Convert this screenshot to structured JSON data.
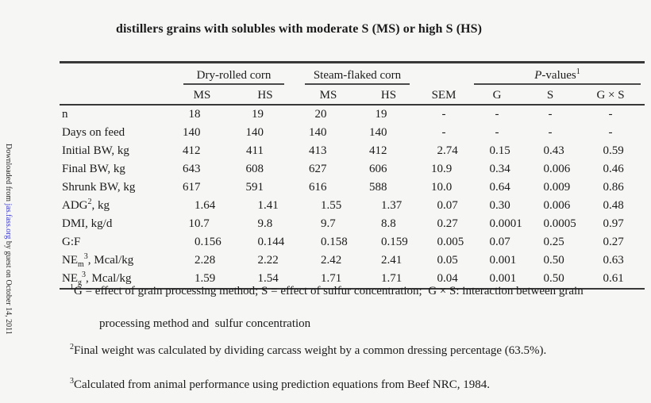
{
  "colors": {
    "background": "#f6f6f5",
    "text": "#1b1b1b",
    "rule": "#383838",
    "link": "#3a3acc"
  },
  "sidebar": {
    "pre": "Downloaded from ",
    "link": "jas.fass.org",
    "post": " by guest on October 14, 2011"
  },
  "caption": "distillers grains with solubles with moderate S (MS) or high S (HS)",
  "table": {
    "groups": [
      {
        "label": "Dry-rolled corn"
      },
      {
        "label": "Steam-flaked corn"
      },
      {
        "italic": "P",
        "rest": "-values",
        "sup": "1"
      }
    ],
    "col_headers": [
      "MS",
      "HS",
      "MS",
      "HS",
      "SEM",
      "G",
      "S",
      "G × S"
    ],
    "rows": [
      {
        "label": [
          {
            "t": "n"
          }
        ],
        "cells": [
          "18",
          "19",
          "20",
          "19",
          "-",
          "-",
          "-",
          "-"
        ]
      },
      {
        "label": [
          {
            "t": "Days on feed"
          }
        ],
        "cells": [
          "140",
          "140",
          "140",
          "140",
          "-",
          "-",
          "-",
          "-"
        ]
      },
      {
        "label": [
          {
            "t": "Initial BW, kg"
          }
        ],
        "cells": [
          "412",
          "411",
          "413",
          "412",
          "2.74",
          "0.15",
          "0.43",
          "0.59"
        ]
      },
      {
        "label": [
          {
            "t": "Final BW, kg"
          }
        ],
        "cells": [
          "643",
          "608",
          "627",
          "606",
          "10.9",
          "0.34",
          "0.006",
          "0.46"
        ]
      },
      {
        "label": [
          {
            "t": "Shrunk BW, kg"
          }
        ],
        "cells": [
          "617",
          "591",
          "616",
          "588",
          "10.0",
          "0.64",
          "0.009",
          "0.86"
        ]
      },
      {
        "label": [
          {
            "t": "ADG"
          },
          {
            "sup": "2"
          },
          {
            "t": ", kg"
          }
        ],
        "cells": [
          "1.64",
          "1.41",
          "1.55",
          "1.37",
          "0.07",
          "0.30",
          "0.006",
          "0.48"
        ]
      },
      {
        "label": [
          {
            "t": "DMI, kg/d"
          }
        ],
        "cells": [
          "10.7",
          "9.8",
          "9.7",
          "8.8",
          "0.27",
          "0.0001",
          "0.0005",
          "0.97"
        ]
      },
      {
        "label": [
          {
            "t": "G:F"
          }
        ],
        "cells": [
          "0.156",
          "0.144",
          "0.158",
          "0.159",
          "0.005",
          "0.07",
          "0.25",
          "0.27"
        ]
      },
      {
        "label": [
          {
            "t": "NE"
          },
          {
            "sub": "m"
          },
          {
            "sup": "3"
          },
          {
            "t": ", Mcal/kg"
          }
        ],
        "cells": [
          "2.28",
          "2.22",
          "2.42",
          "2.41",
          "0.05",
          "0.001",
          "0.50",
          "0.63"
        ]
      },
      {
        "label": [
          {
            "t": "NE"
          },
          {
            "sub": "g"
          },
          {
            "sup": "3"
          },
          {
            "t": ", Mcal/kg"
          }
        ],
        "cells": [
          "1.59",
          "1.54",
          "1.71",
          "1.71",
          "0.04",
          "0.001",
          "0.50",
          "0.61"
        ]
      }
    ]
  },
  "footnotes": [
    {
      "sup": "1",
      "lines": [
        "G = effect of grain processing method; S = effect of sulfur concentration;  G × S: interaction between grain",
        "processing method and  sulfur concentration"
      ]
    },
    {
      "sup": "2",
      "lines": [
        "Final weight was calculated by dividing carcass weight by a common dressing percentage (63.5%)."
      ]
    },
    {
      "sup": "3",
      "lines": [
        "Calculated from animal performance using prediction equations from Beef NRC, 1984."
      ]
    }
  ]
}
